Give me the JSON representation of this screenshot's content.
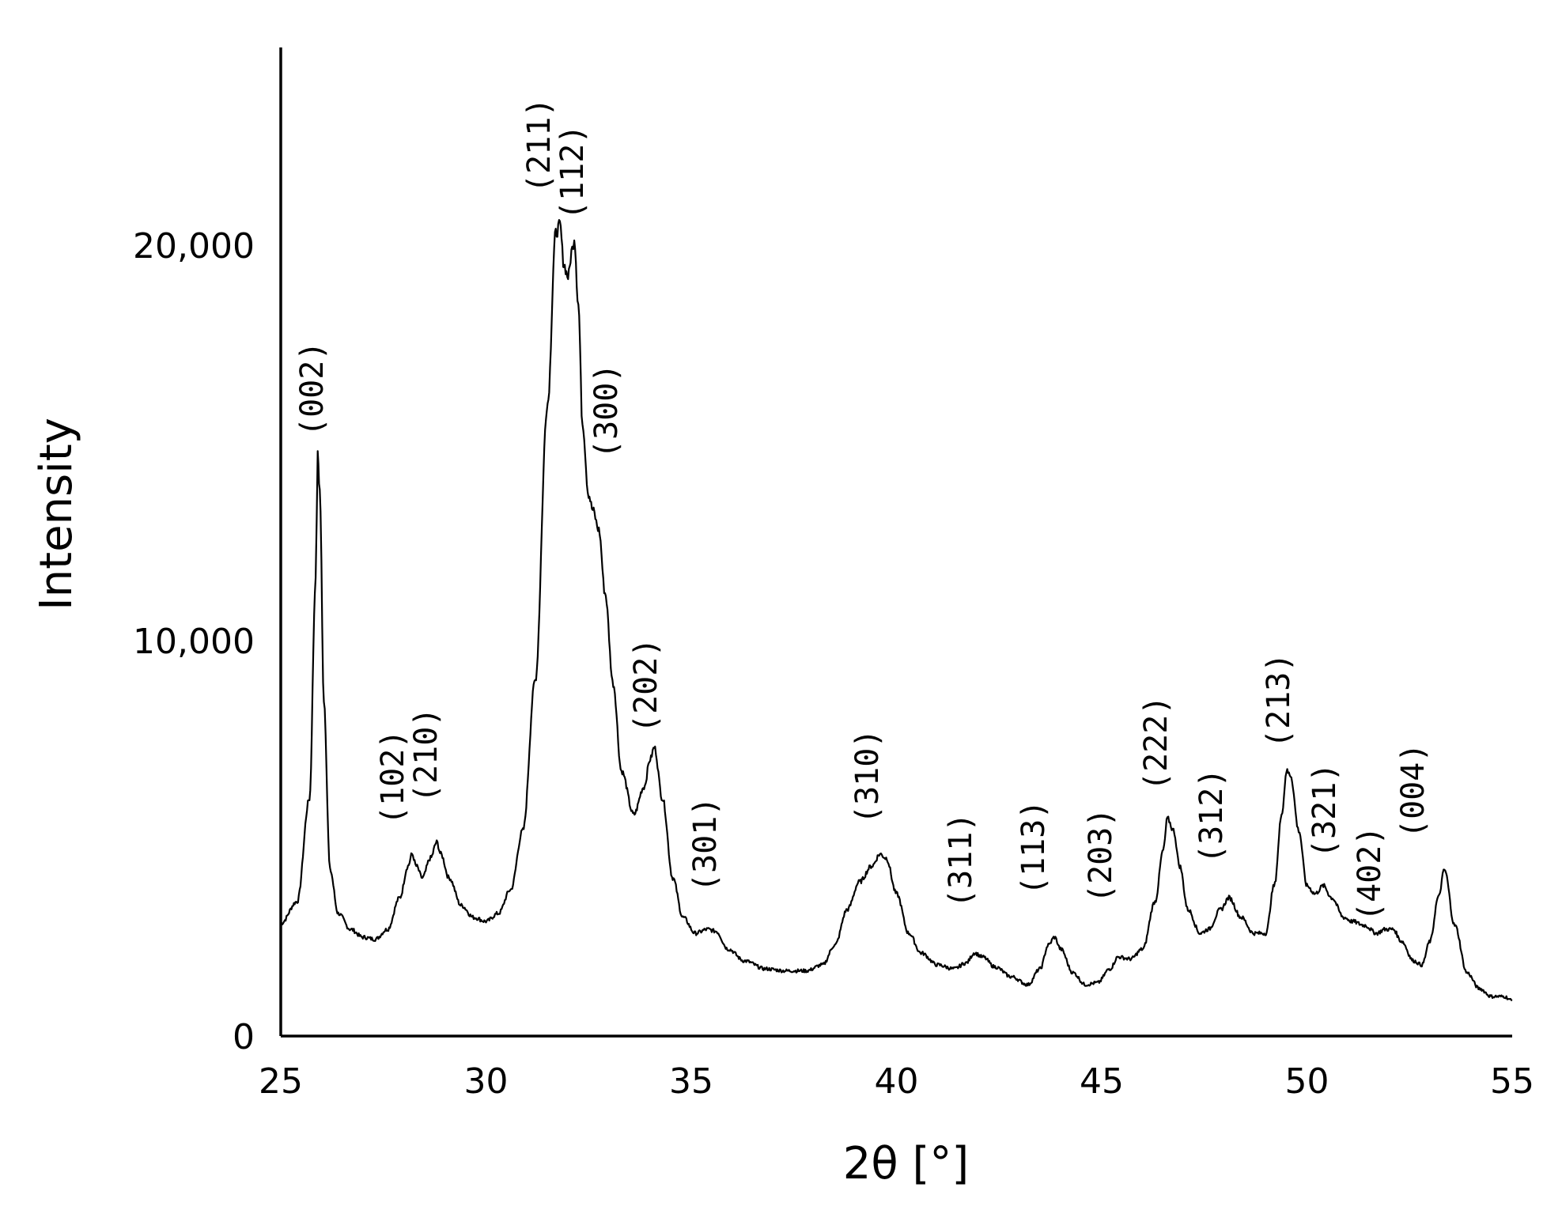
{
  "chart_data": {
    "type": "line",
    "title": "",
    "xlabel": "2θ [°]",
    "ylabel": "Intensity",
    "xlim": [
      25,
      55
    ],
    "ylim": [
      0,
      25000
    ],
    "xticks": [
      25,
      30,
      35,
      40,
      45,
      50,
      55
    ],
    "xtick_labels": [
      "25",
      "30",
      "35",
      "40",
      "45",
      "50",
      "55"
    ],
    "yticks": [
      0,
      10000,
      20000
    ],
    "ytick_labels": [
      "0",
      "10,000",
      "20,000"
    ],
    "grid": false,
    "legend": "none",
    "line_color": "#000000",
    "series": [
      {
        "x": [
          25.0,
          25.4,
          25.7,
          25.85,
          25.9,
          25.95,
          26.05,
          26.2,
          26.4,
          26.7,
          27.0,
          27.3,
          27.6,
          27.9,
          28.1,
          28.2,
          28.3,
          28.45,
          28.65,
          28.8,
          28.9,
          29.1,
          29.4,
          29.7,
          30.0,
          30.3,
          30.6,
          30.9,
          31.2,
          31.5,
          31.7,
          31.8,
          31.9,
          32.0,
          32.1,
          32.15,
          32.25,
          32.35,
          32.5,
          32.6,
          32.75,
          32.9,
          33.1,
          33.3,
          33.6,
          33.85,
          34.0,
          34.1,
          34.3,
          34.55,
          34.8,
          35.1,
          35.4,
          35.6,
          35.9,
          36.3,
          36.8,
          37.3,
          37.8,
          38.2,
          38.5,
          38.8,
          39.1,
          39.4,
          39.6,
          39.75,
          40.0,
          40.3,
          40.6,
          41.0,
          41.4,
          41.7,
          41.9,
          42.1,
          42.4,
          42.8,
          43.2,
          43.5,
          43.7,
          43.85,
          44.0,
          44.3,
          44.6,
          44.9,
          45.2,
          45.4,
          45.7,
          46.0,
          46.3,
          46.5,
          46.6,
          46.75,
          46.9,
          47.1,
          47.4,
          47.6,
          47.9,
          48.1,
          48.4,
          48.7,
          49.0,
          49.2,
          49.4,
          49.5,
          49.6,
          49.8,
          50.0,
          50.2,
          50.4,
          50.6,
          50.9,
          51.1,
          51.4,
          51.7,
          51.9,
          52.1,
          52.3,
          52.6,
          52.8,
          53.0,
          53.2,
          53.35,
          53.6,
          53.9,
          54.2,
          54.5,
          54.8,
          55.0
        ],
        "y": [
          2850,
          3400,
          6000,
          11500,
          14700,
          13800,
          8500,
          4200,
          3100,
          2700,
          2500,
          2450,
          2700,
          3500,
          4300,
          4600,
          4300,
          4000,
          4500,
          4900,
          4600,
          4000,
          3300,
          3000,
          2900,
          3100,
          3700,
          5200,
          9000,
          16000,
          20300,
          20500,
          19500,
          19200,
          19900,
          20200,
          18500,
          15500,
          13700,
          13300,
          12800,
          11200,
          8900,
          6700,
          5600,
          6300,
          7000,
          7300,
          6000,
          4000,
          3000,
          2600,
          2700,
          2650,
          2200,
          1900,
          1700,
          1650,
          1650,
          1800,
          2300,
          3200,
          3900,
          4300,
          4600,
          4500,
          3600,
          2600,
          2100,
          1800,
          1700,
          1850,
          2100,
          2000,
          1750,
          1500,
          1300,
          1700,
          2300,
          2500,
          2200,
          1600,
          1300,
          1350,
          1700,
          2000,
          1950,
          2200,
          3400,
          4700,
          5500,
          5200,
          4300,
          3200,
          2600,
          2700,
          3200,
          3500,
          3000,
          2600,
          2600,
          3800,
          5700,
          6700,
          6600,
          5200,
          3800,
          3600,
          3800,
          3500,
          3000,
          2900,
          2800,
          2600,
          2700,
          2700,
          2400,
          1900,
          1800,
          2400,
          3500,
          4200,
          2800,
          1600,
          1200,
          1000,
          1000,
          900
        ]
      }
    ],
    "annotations": [
      {
        "text": "(002)",
        "x": 25.9
      },
      {
        "text": "(102)",
        "x": 28.2
      },
      {
        "text": "(210)",
        "x": 28.9
      },
      {
        "text": "(211)",
        "x": 31.75
      },
      {
        "text": "(112)",
        "x": 32.4
      },
      {
        "text": "(300)",
        "x": 33.0
      },
      {
        "text": "(202)",
        "x": 33.9
      },
      {
        "text": "(301)",
        "x": 35.4
      },
      {
        "text": "(310)",
        "x": 39.6
      },
      {
        "text": "(311)",
        "x": 41.8
      },
      {
        "text": "(113)",
        "x": 43.7
      },
      {
        "text": "(203)",
        "x": 45.3
      },
      {
        "text": "(222)",
        "x": 46.6
      },
      {
        "text": "(312)",
        "x": 47.9
      },
      {
        "text": "(213)",
        "x": 49.5
      },
      {
        "text": "(321)",
        "x": 50.7
      },
      {
        "text": "(402)",
        "x": 51.8
      },
      {
        "text": "(004)",
        "x": 53.1
      }
    ]
  }
}
